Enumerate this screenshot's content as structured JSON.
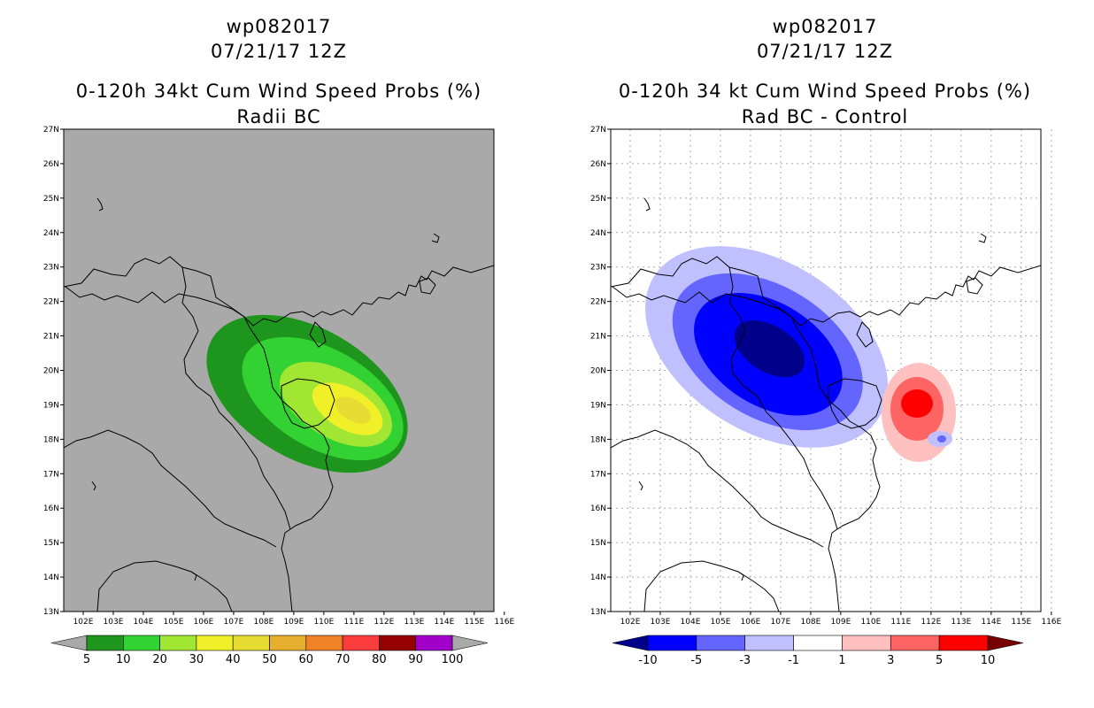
{
  "left_panel": {
    "title_line1": "wp082017",
    "title_line2": "07/21/17 12Z",
    "title_line3": "0-120h 34kt Cum Wind Speed Probs (%)",
    "title_line4": "Radii BC",
    "background_color": "#a9a9a9",
    "colorbar": {
      "labels": [
        "5",
        "10",
        "20",
        "30",
        "40",
        "50",
        "60",
        "70",
        "80",
        "90",
        "100"
      ],
      "colors": [
        "#1e961e",
        "#32d232",
        "#a0e632",
        "#f0f028",
        "#e6dc32",
        "#e6af2d",
        "#f08228",
        "#fa3c3c",
        "#960000",
        "#a000c8"
      ]
    }
  },
  "right_panel": {
    "title_line1": "wp082017",
    "title_line2": "07/21/17 12Z",
    "title_line3": "0-120h 34 kt Cum Wind Speed Probs (%)",
    "title_line4": "Rad BC - Control",
    "background_color": "#ffffff",
    "colorbar": {
      "labels": [
        "-10",
        "-5",
        "-3",
        "-1",
        "1",
        "3",
        "5",
        "10"
      ],
      "colors": [
        "#0000ff",
        "#6464ff",
        "#c0c0ff",
        "#ffffff",
        "#ffc0c0",
        "#ff6464",
        "#ff0000"
      ],
      "end_low": "#00008b",
      "end_high": "#780000"
    }
  },
  "axes": {
    "lat_labels": [
      "13N",
      "14N",
      "15N",
      "16N",
      "17N",
      "18N",
      "19N",
      "20N",
      "21N",
      "22N",
      "23N",
      "24N",
      "25N",
      "26N",
      "27N"
    ],
    "lon_labels": [
      "102E",
      "103E",
      "104E",
      "105E",
      "106E",
      "107E",
      "108E",
      "109E",
      "110E",
      "111E",
      "112E",
      "113E",
      "114E",
      "115E",
      "116E"
    ]
  }
}
